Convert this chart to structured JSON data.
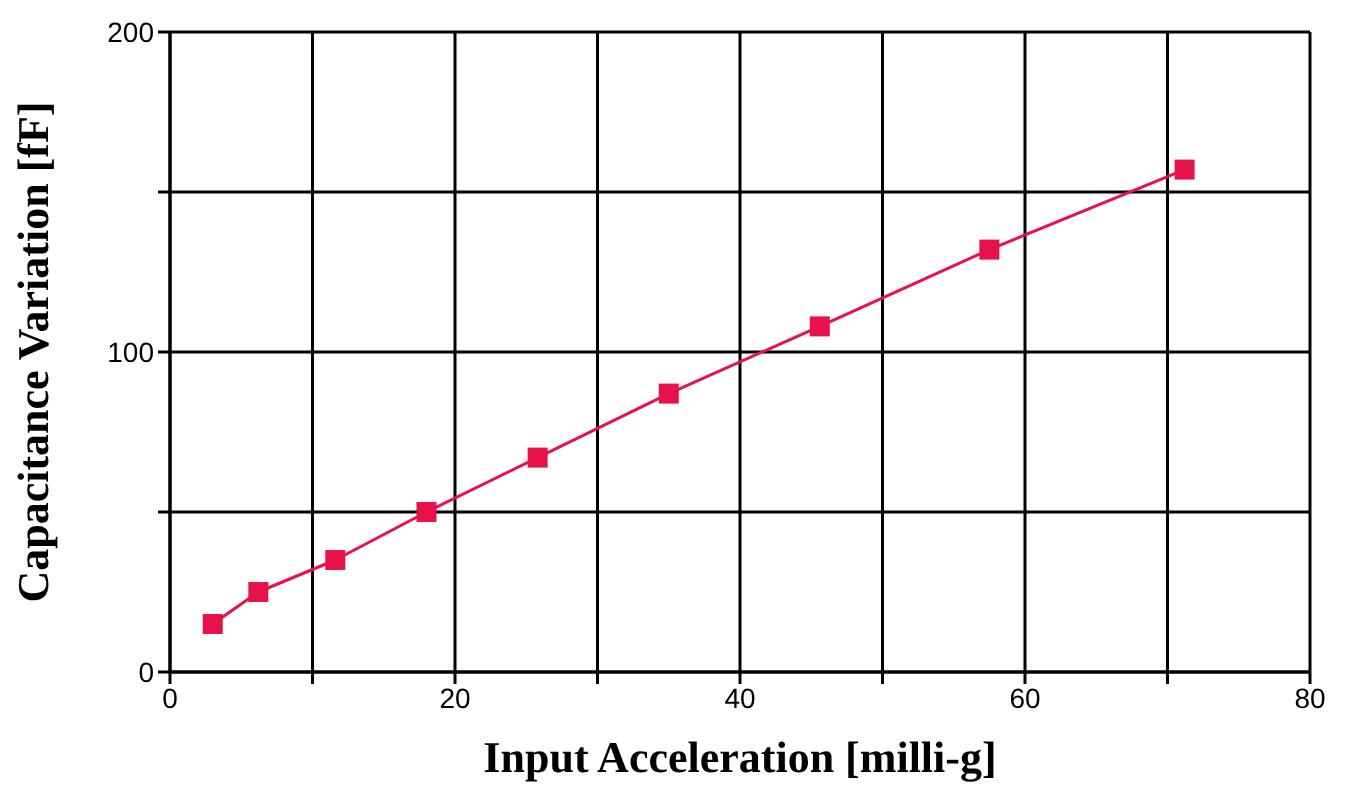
{
  "chart_data": {
    "type": "line",
    "xlabel": "Input Acceleration [milli-g]",
    "ylabel": "Capacitance Variation [fF]",
    "x": [
      3,
      6.2,
      11.6,
      18,
      25.8,
      35,
      45.6,
      57.5,
      71.2
    ],
    "series": [
      {
        "color": "#e8124a",
        "values": [
          15,
          25,
          35,
          50,
          67,
          87,
          108,
          132,
          157
        ]
      }
    ],
    "xlim": [
      0,
      80
    ],
    "ylim": [
      0,
      200
    ],
    "xticks": [
      0,
      {
        "value": 10,
        "label": null
      },
      20,
      {
        "value": 30,
        "label": null
      },
      40,
      {
        "value": 50,
        "label": null
      },
      60,
      {
        "value": 70,
        "label": null
      },
      80
    ],
    "yticks": [
      0,
      {
        "value": 50,
        "label": null
      },
      100,
      {
        "value": 150,
        "label": null
      },
      200
    ],
    "grid": true,
    "marker": "square",
    "line_style": "solid"
  }
}
